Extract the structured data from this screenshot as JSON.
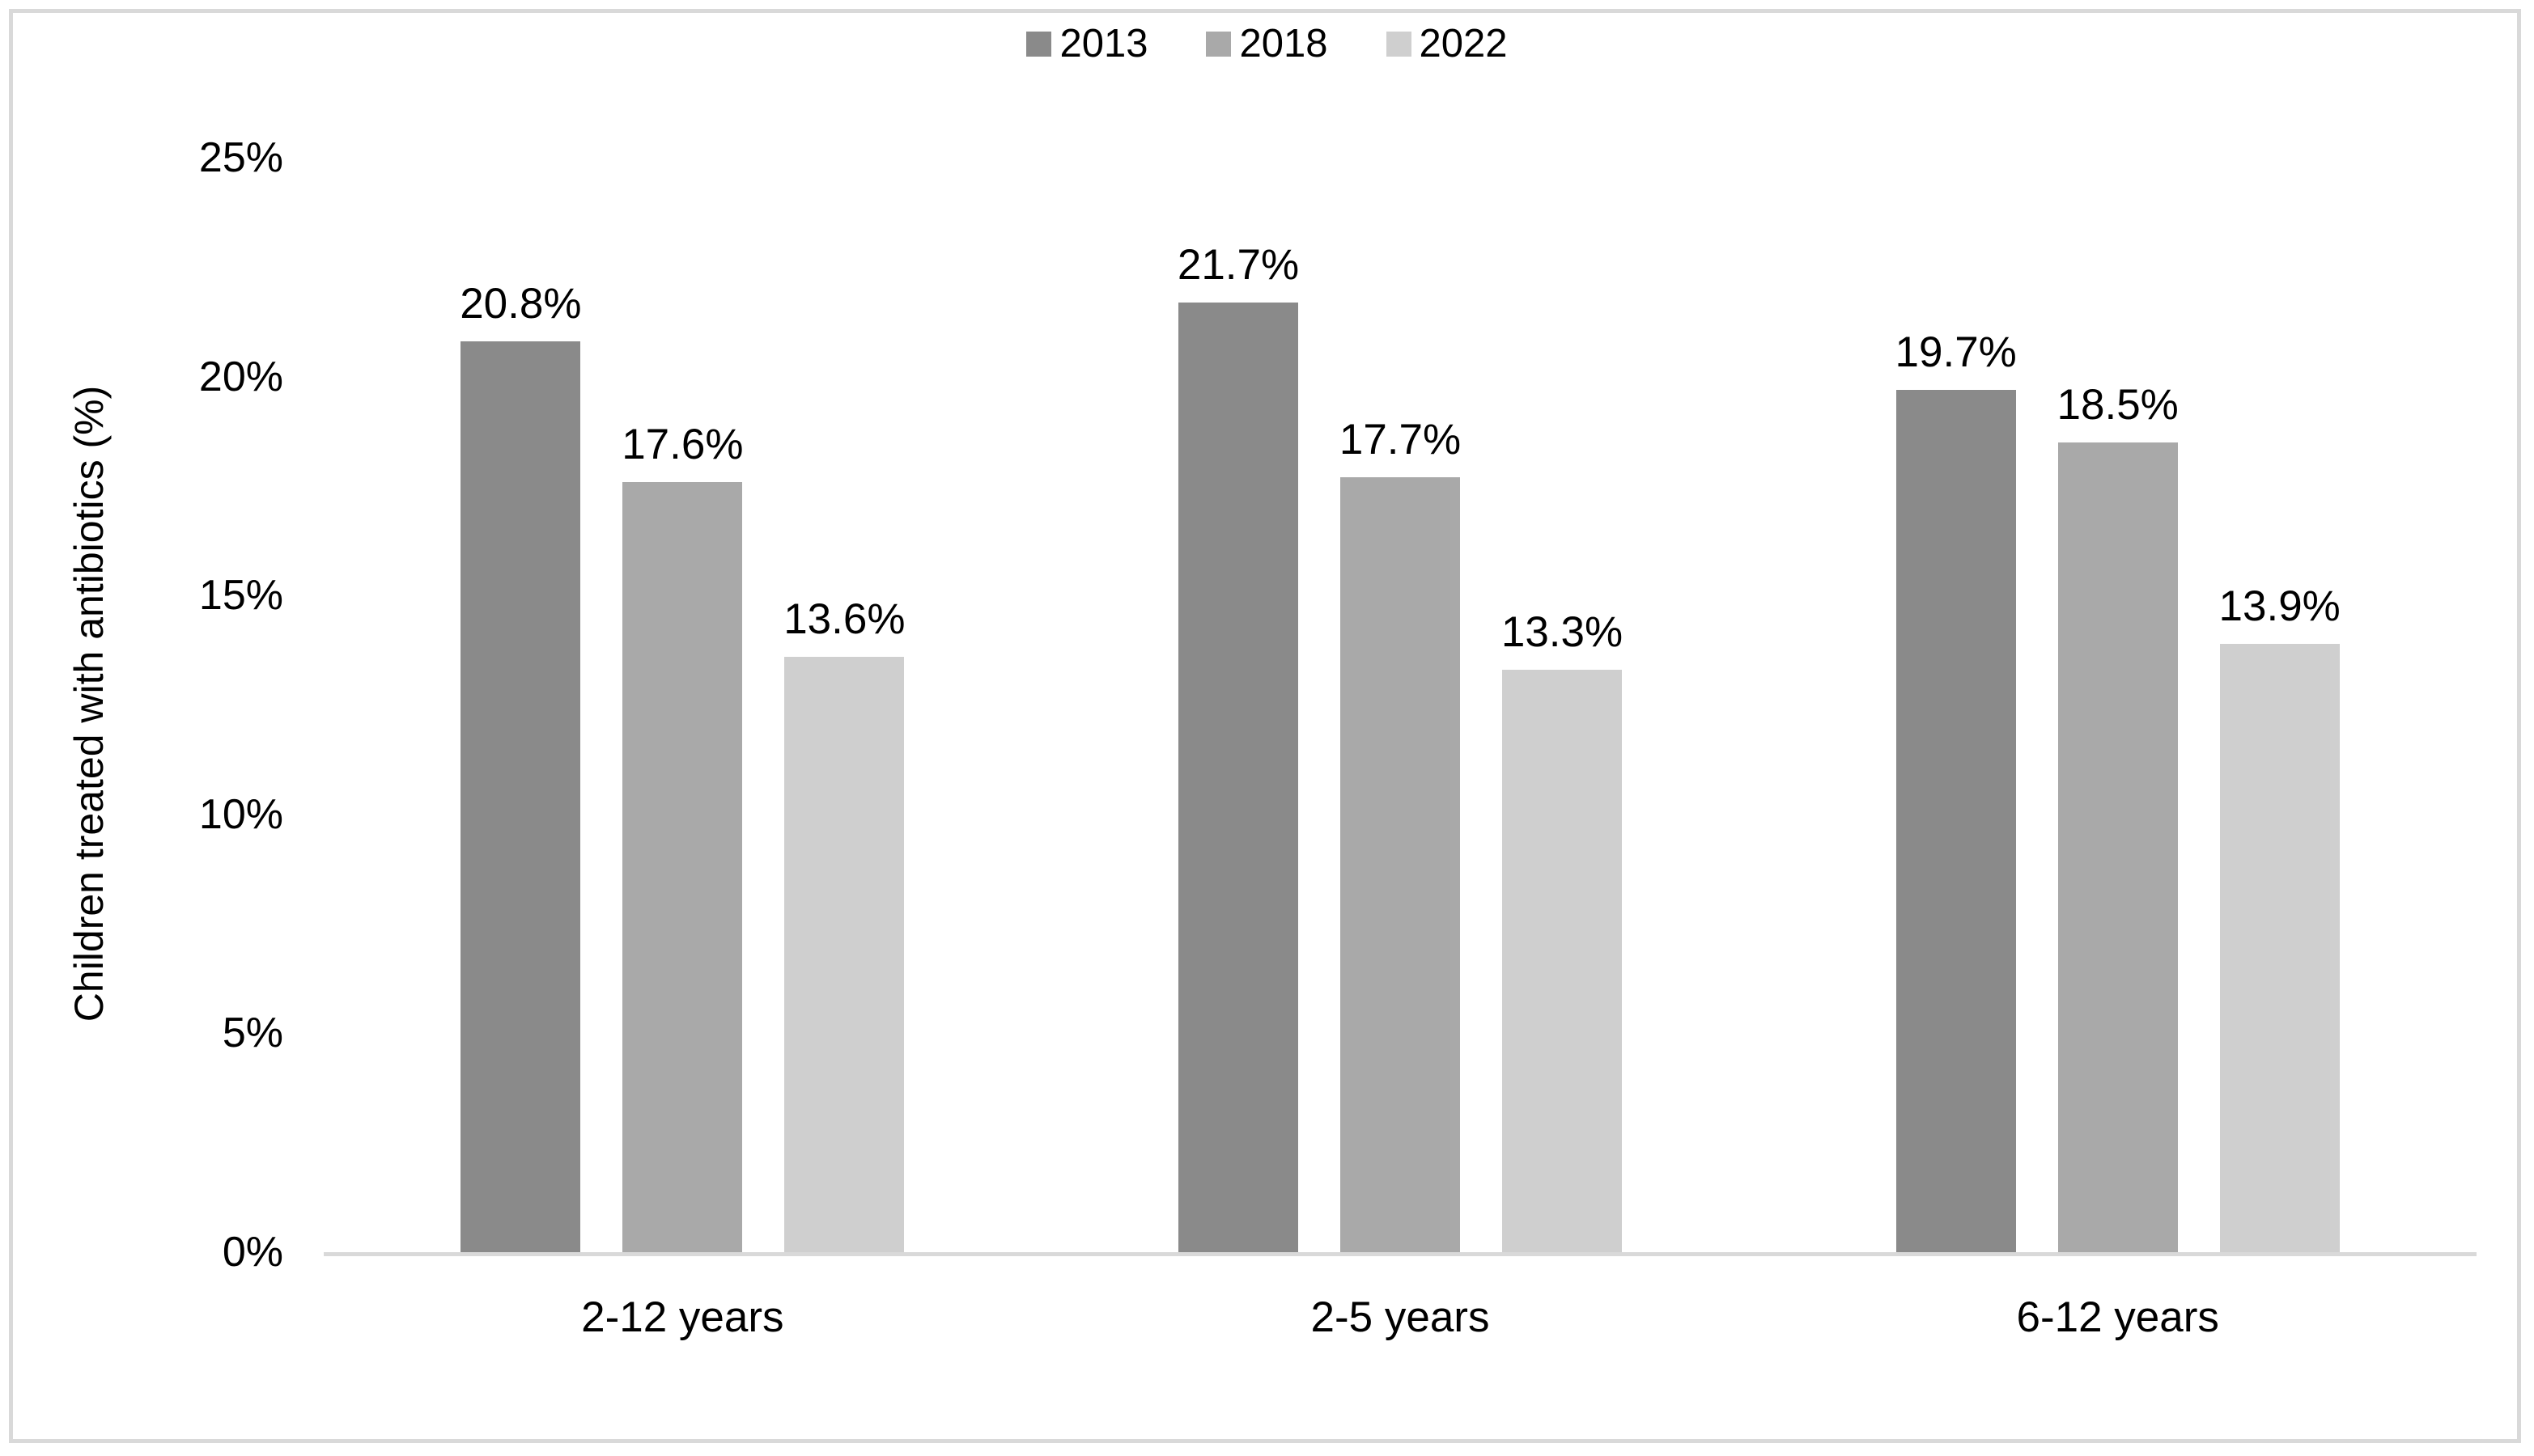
{
  "chart_data": {
    "type": "bar",
    "title": "",
    "categories": [
      "2-12 years",
      "2-5 years",
      "6-12 years"
    ],
    "series": [
      {
        "name": "2013",
        "color": "#8a8a8a",
        "values": [
          20.8,
          21.7,
          19.7
        ],
        "labels": [
          "20.8%",
          "21.7%",
          "19.7%"
        ]
      },
      {
        "name": "2018",
        "color": "#a9a9a9",
        "values": [
          17.6,
          17.7,
          18.5
        ],
        "labels": [
          "17.6%",
          "17.7%",
          "18.5%"
        ]
      },
      {
        "name": "2022",
        "color": "#cfcfcf",
        "values": [
          13.6,
          13.3,
          13.9
        ],
        "labels": [
          "13.6%",
          "13.3%",
          "13.9%"
        ]
      }
    ],
    "xlabel": "",
    "ylabel": "Children treated with antibiotics (%)",
    "ylim": [
      0,
      25
    ],
    "yticks": [
      "25%",
      "20%",
      "15%",
      "10%",
      "5%",
      "0%"
    ],
    "legend_position": "top",
    "grid": false,
    "axis_color": "#d9d9d9",
    "frame_border_color": "#d9d9d9",
    "text_color": "#000000"
  }
}
